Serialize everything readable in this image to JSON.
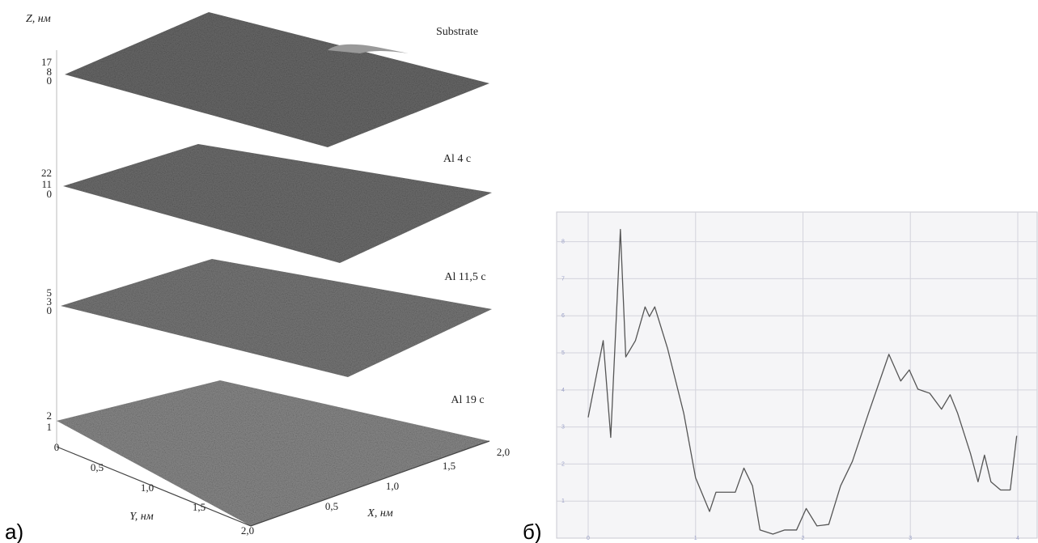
{
  "panels": {
    "a": "а)",
    "b": "б)"
  },
  "afm": {
    "z_label": "Z, нм",
    "layers": [
      {
        "name": "Substrate",
        "zticks": [
          "17",
          "8",
          "0"
        ]
      },
      {
        "name": "Al 4 c",
        "zticks": [
          "22",
          "11",
          "0"
        ]
      },
      {
        "name": "Al 11,5 c",
        "zticks": [
          "5",
          "3",
          "0"
        ]
      },
      {
        "name": "Al 19 c",
        "zticks": [
          "2",
          "1"
        ]
      }
    ],
    "y_axis": {
      "label": "Y, нм",
      "ticks": [
        "0",
        "0,5",
        "1,0",
        "1,5",
        "2,0"
      ]
    },
    "x_axis": {
      "label": "X, нм",
      "ticks": [
        "0,5",
        "1,0",
        "1,5",
        "2,0"
      ]
    }
  },
  "chart_data": {
    "type": "line",
    "series": [
      {
        "color": "#555555",
        "x": [
          0,
          0.14,
          0.21,
          0.3,
          0.35,
          0.44,
          0.53,
          0.57,
          0.62,
          0.74,
          0.89,
          1.0,
          1.13,
          1.19,
          1.26,
          1.37,
          1.45,
          1.53,
          1.6,
          1.72,
          1.83,
          1.94,
          2.03,
          2.13,
          2.24,
          2.35,
          2.46,
          2.61,
          2.8,
          2.91,
          2.99,
          3.07,
          3.18,
          3.29,
          3.37,
          3.44,
          3.56,
          3.63,
          3.69,
          3.75,
          3.84,
          3.93,
          3.99
        ],
        "values": [
          3.26,
          5.33,
          2.72,
          8.33,
          4.89,
          5.33,
          6.24,
          5.98,
          6.24,
          5.11,
          3.37,
          1.63,
          0.72,
          1.24,
          1.24,
          1.24,
          1.89,
          1.41,
          0.22,
          0.11,
          0.22,
          0.22,
          0.8,
          0.33,
          0.37,
          1.41,
          2.07,
          3.37,
          4.96,
          4.24,
          4.54,
          4.02,
          3.91,
          3.48,
          3.87,
          3.37,
          2.28,
          1.52,
          2.24,
          1.52,
          1.3,
          1.3,
          2.76
        ]
      }
    ],
    "xlim": [
      0,
      4
    ],
    "xticks": [
      0,
      1,
      2,
      3,
      4
    ],
    "ylim": [
      0,
      8.8
    ],
    "yticks": [
      1,
      2,
      3,
      4,
      5,
      6,
      7,
      8
    ],
    "grid": true
  }
}
